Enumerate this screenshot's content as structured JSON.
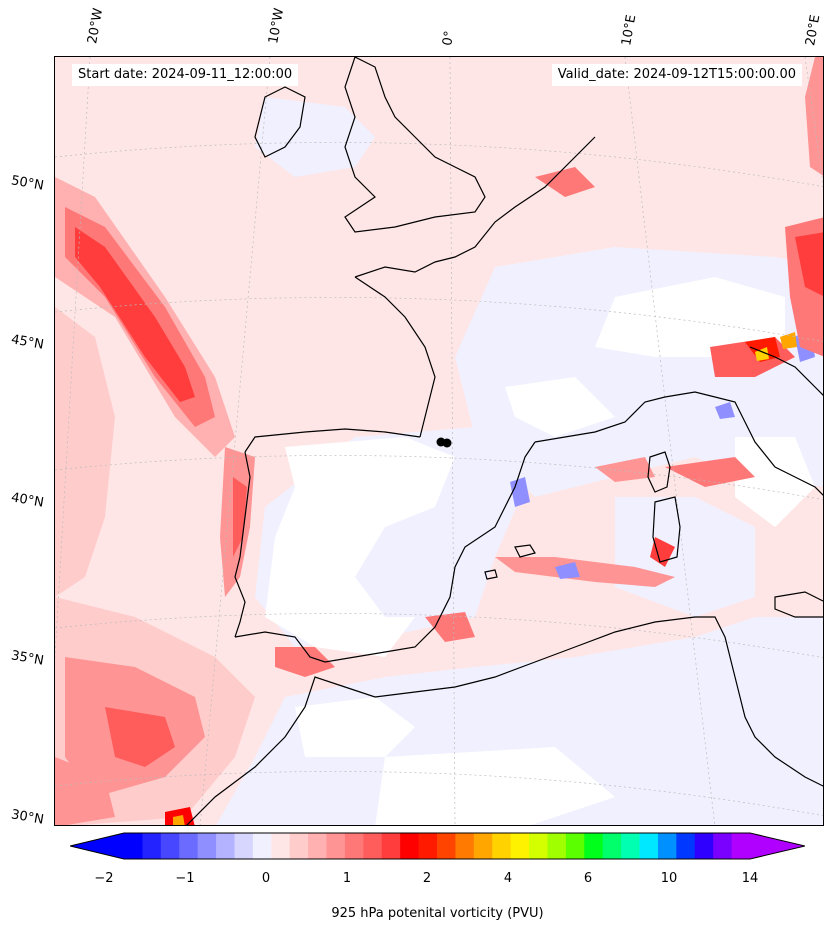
{
  "title": {
    "start_date": "Start date: 2024-09-11_12:00:00",
    "valid_date": "Valid_date: 2024-09-12T15:00:00.00"
  },
  "axes": {
    "lon_ticks": [
      "20°W",
      "10°W",
      "0°",
      "10°E",
      "20°E"
    ],
    "lat_ticks": [
      "50°N",
      "45°N",
      "40°N",
      "35°N",
      "30°N"
    ],
    "region": {
      "lon_range": [
        -22,
        22
      ],
      "lat_range": [
        30,
        54
      ]
    }
  },
  "colorbar": {
    "label": "925 hPa potenital vorticity (PVU)",
    "tick_labels": [
      "−2",
      "−1",
      "0",
      "1",
      "2",
      "4",
      "6",
      "10",
      "14"
    ],
    "colors": [
      "#0000ff",
      "#2323ff",
      "#4747ff",
      "#6b6bff",
      "#8f8fff",
      "#b3b3ff",
      "#d6d6ff",
      "#f0f0ff",
      "#ffe6e6",
      "#ffcccc",
      "#ffb0b0",
      "#ff9494",
      "#ff7878",
      "#ff5c5c",
      "#ff3d3d",
      "#ff0000",
      "#ff1a00",
      "#ff4400",
      "#ff7a00",
      "#ffa600",
      "#ffd200",
      "#fff200",
      "#d4ff00",
      "#a0ff00",
      "#5cff00",
      "#00ff1a",
      "#00ff6a",
      "#00ffb0",
      "#00e8ff",
      "#0090ff",
      "#0038ff",
      "#3000ff",
      "#7a00ff",
      "#b000ff"
    ],
    "extend": "both"
  },
  "map_features": {
    "field": "925 hPa potential vorticity",
    "coastlines": true,
    "gridlines": "dotted"
  }
}
